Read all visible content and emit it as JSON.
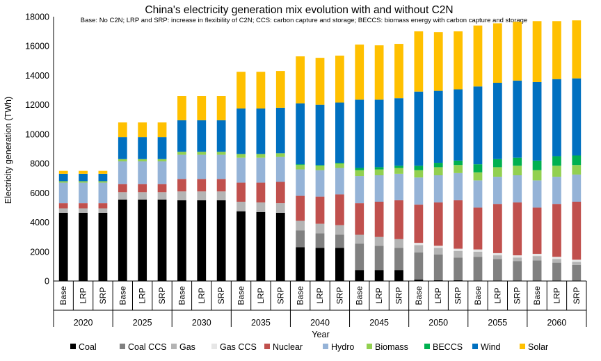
{
  "chart_data": {
    "type": "bar",
    "stacked": true,
    "title": "China's electricity generation mix evolution with and without C2N",
    "subtitle": "Base: No C2N; LRP and SRP: increase in flexibility of C2N; CCS: carbon capture and storage; BECCS: biomass energy with carbon capture and storage",
    "xlabel": "Year",
    "ylabel": "Electricity generation (TWh)",
    "ylim": [
      0,
      18000
    ],
    "yticks": [
      "0",
      "2000",
      "4000",
      "6000",
      "8000",
      "10000",
      "12000",
      "14000",
      "16000",
      "18000"
    ],
    "groups": [
      "2020",
      "2025",
      "2030",
      "2035",
      "2040",
      "2045",
      "2050",
      "2055",
      "2060"
    ],
    "scenarios": [
      "Base",
      "LRP",
      "SRP"
    ],
    "legend_position": "bottom",
    "series": [
      {
        "name": "Coal",
        "color": "#000000",
        "values": [
          [
            4650,
            4650,
            4650
          ],
          [
            5550,
            5550,
            5550
          ],
          [
            5500,
            5500,
            5500
          ],
          [
            4750,
            4700,
            4650
          ],
          [
            2300,
            2250,
            2250
          ],
          [
            750,
            750,
            750
          ],
          [
            100,
            50,
            50
          ],
          [
            0,
            0,
            0
          ],
          [
            0,
            0,
            0
          ]
        ]
      },
      {
        "name": "Coal CCS",
        "color": "#808080",
        "values": [
          [
            0,
            0,
            0
          ],
          [
            0,
            0,
            0
          ],
          [
            0,
            0,
            0
          ],
          [
            0,
            0,
            0
          ],
          [
            1150,
            1000,
            900
          ],
          [
            1800,
            1650,
            1500
          ],
          [
            1850,
            1750,
            1550
          ],
          [
            1650,
            1500,
            1350
          ],
          [
            1400,
            1250,
            1100
          ]
        ]
      },
      {
        "name": "Gas",
        "color": "#b4b4b4",
        "values": [
          [
            300,
            300,
            300
          ],
          [
            500,
            500,
            500
          ],
          [
            600,
            600,
            600
          ],
          [
            650,
            650,
            650
          ],
          [
            650,
            650,
            650
          ],
          [
            600,
            600,
            600
          ],
          [
            500,
            450,
            450
          ],
          [
            350,
            250,
            250
          ],
          [
            300,
            250,
            200
          ]
        ]
      },
      {
        "name": "Gas CCS",
        "color": "#e6e6e6",
        "values": [
          [
            0,
            0,
            0
          ],
          [
            0,
            0,
            0
          ],
          [
            0,
            0,
            0
          ],
          [
            0,
            0,
            0
          ],
          [
            0,
            0,
            0
          ],
          [
            0,
            0,
            0
          ],
          [
            150,
            150,
            150
          ],
          [
            150,
            150,
            150
          ],
          [
            150,
            150,
            150
          ]
        ]
      },
      {
        "name": "Nuclear",
        "color": "#c0504d",
        "values": [
          [
            350,
            350,
            350
          ],
          [
            550,
            550,
            550
          ],
          [
            850,
            850,
            850
          ],
          [
            1300,
            1350,
            1450
          ],
          [
            1700,
            1850,
            2100
          ],
          [
            2150,
            2400,
            2650
          ],
          [
            2600,
            2950,
            3300
          ],
          [
            2850,
            3350,
            3600
          ],
          [
            3150,
            3600,
            3950
          ]
        ]
      },
      {
        "name": "Hydro",
        "color": "#95b3d7",
        "values": [
          [
            1400,
            1400,
            1400
          ],
          [
            1550,
            1550,
            1550
          ],
          [
            1650,
            1650,
            1650
          ],
          [
            1700,
            1700,
            1700
          ],
          [
            1800,
            1800,
            1800
          ],
          [
            1850,
            1800,
            1800
          ],
          [
            1850,
            1850,
            1850
          ],
          [
            1850,
            1850,
            1850
          ],
          [
            1850,
            1850,
            1850
          ]
        ]
      },
      {
        "name": "Biomass",
        "color": "#92d050",
        "values": [
          [
            100,
            100,
            100
          ],
          [
            150,
            150,
            150
          ],
          [
            200,
            200,
            200
          ],
          [
            250,
            250,
            250
          ],
          [
            300,
            300,
            300
          ],
          [
            400,
            400,
            400
          ],
          [
            500,
            550,
            550
          ],
          [
            550,
            650,
            650
          ],
          [
            700,
            750,
            650
          ]
        ]
      },
      {
        "name": "BECCS",
        "color": "#00b050",
        "values": [
          [
            0,
            0,
            0
          ],
          [
            0,
            0,
            0
          ],
          [
            0,
            0,
            0
          ],
          [
            0,
            0,
            0
          ],
          [
            50,
            50,
            50
          ],
          [
            150,
            150,
            150
          ],
          [
            300,
            300,
            300
          ],
          [
            550,
            550,
            550
          ],
          [
            650,
            650,
            650
          ]
        ]
      },
      {
        "name": "Wind",
        "color": "#0070c0",
        "values": [
          [
            500,
            500,
            500
          ],
          [
            1500,
            1500,
            1500
          ],
          [
            2150,
            2150,
            2150
          ],
          [
            3100,
            3100,
            3100
          ],
          [
            4150,
            4100,
            4100
          ],
          [
            4650,
            4600,
            4600
          ],
          [
            5050,
            4900,
            4850
          ],
          [
            5300,
            5200,
            5250
          ],
          [
            5350,
            5250,
            5250
          ]
        ]
      },
      {
        "name": "Solar",
        "color": "#ffc000",
        "values": [
          [
            200,
            200,
            200
          ],
          [
            1000,
            1000,
            1000
          ],
          [
            1650,
            1650,
            1650
          ],
          [
            2500,
            2500,
            2500
          ],
          [
            3200,
            3200,
            3200
          ],
          [
            3750,
            3700,
            3700
          ],
          [
            4100,
            4000,
            3950
          ],
          [
            4150,
            4050,
            4000
          ],
          [
            4150,
            3950,
            3950
          ]
        ]
      }
    ]
  }
}
